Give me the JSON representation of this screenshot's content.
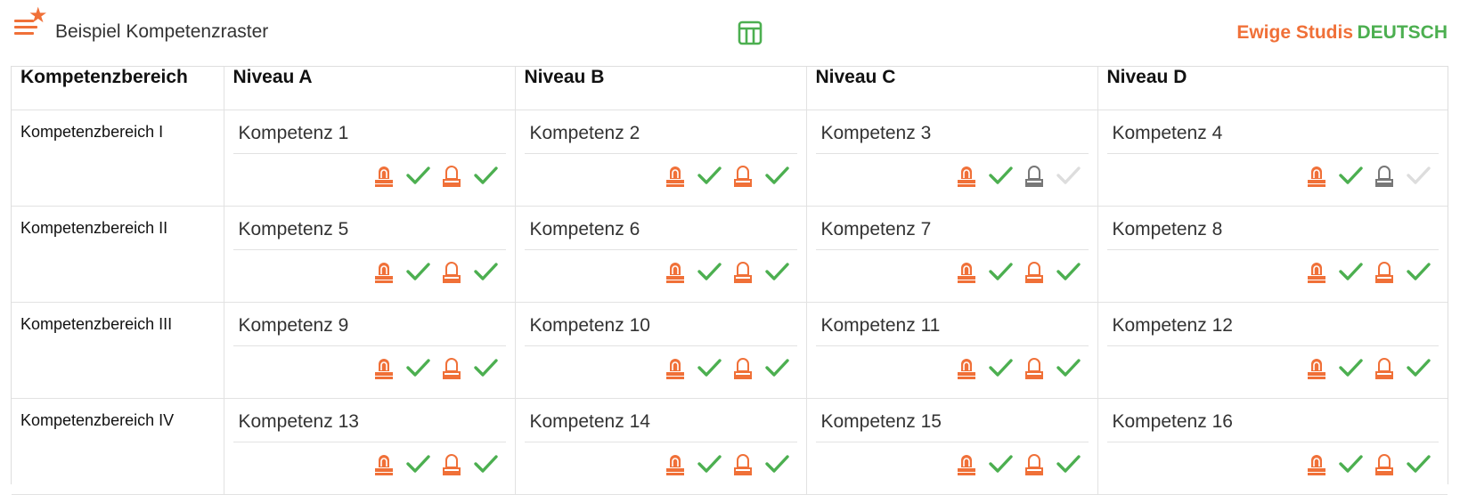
{
  "app": {
    "title": "Beispiel Kompetenzraster",
    "user": "Ewige Studis",
    "subject": "DEUTSCH"
  },
  "icons": {
    "menu": "menu-star-icon",
    "toggle": "table-layout-icon"
  },
  "colors": {
    "accent": "#f07038",
    "success": "#4caf50",
    "muted": "#777777",
    "faint": "#dddddd"
  },
  "columns": [
    "Kompetenzbereich",
    "Niveau A",
    "Niveau B",
    "Niveau C",
    "Niveau D"
  ],
  "rows": [
    {
      "area": "Kompetenzbereich I",
      "competencies": [
        {
          "name": "Kompetenz 1",
          "status": [
            "stamp-filled",
            "check",
            "stamp-outline",
            "check"
          ]
        },
        {
          "name": "Kompetenz 2",
          "status": [
            "stamp-filled",
            "check",
            "stamp-outline",
            "check"
          ]
        },
        {
          "name": "Kompetenz 3",
          "status": [
            "stamp-filled",
            "check",
            "stamp-gray",
            "check-faint"
          ]
        },
        {
          "name": "Kompetenz 4",
          "status": [
            "stamp-filled",
            "check",
            "stamp-gray",
            "check-faint"
          ]
        }
      ]
    },
    {
      "area": "Kompetenzbereich II",
      "competencies": [
        {
          "name": "Kompetenz 5",
          "status": [
            "stamp-filled",
            "check",
            "stamp-outline",
            "check"
          ]
        },
        {
          "name": "Kompetenz 6",
          "status": [
            "stamp-filled",
            "check",
            "stamp-outline",
            "check"
          ]
        },
        {
          "name": "Kompetenz 7",
          "status": [
            "stamp-filled",
            "check",
            "stamp-outline",
            "check"
          ]
        },
        {
          "name": "Kompetenz 8",
          "status": [
            "stamp-filled",
            "check",
            "stamp-outline",
            "check"
          ]
        }
      ]
    },
    {
      "area": "Kompetenzbereich III",
      "competencies": [
        {
          "name": "Kompetenz 9",
          "status": [
            "stamp-filled",
            "check",
            "stamp-outline",
            "check"
          ]
        },
        {
          "name": "Kompetenz 10",
          "status": [
            "stamp-filled",
            "check",
            "stamp-outline",
            "check"
          ]
        },
        {
          "name": "Kompetenz 11",
          "status": [
            "stamp-filled",
            "check",
            "stamp-outline",
            "check"
          ]
        },
        {
          "name": "Kompetenz 12",
          "status": [
            "stamp-filled",
            "check",
            "stamp-outline",
            "check"
          ]
        }
      ]
    },
    {
      "area": "Kompetenzbereich IV",
      "competencies": [
        {
          "name": "Kompetenz 13",
          "status": [
            "stamp-filled",
            "check",
            "stamp-outline",
            "check"
          ]
        },
        {
          "name": "Kompetenz 14",
          "status": [
            "stamp-filled",
            "check",
            "stamp-outline",
            "check"
          ]
        },
        {
          "name": "Kompetenz 15",
          "status": [
            "stamp-filled",
            "check",
            "stamp-outline",
            "check"
          ]
        },
        {
          "name": "Kompetenz 16",
          "status": [
            "stamp-filled",
            "check",
            "stamp-outline",
            "check"
          ]
        }
      ]
    }
  ]
}
